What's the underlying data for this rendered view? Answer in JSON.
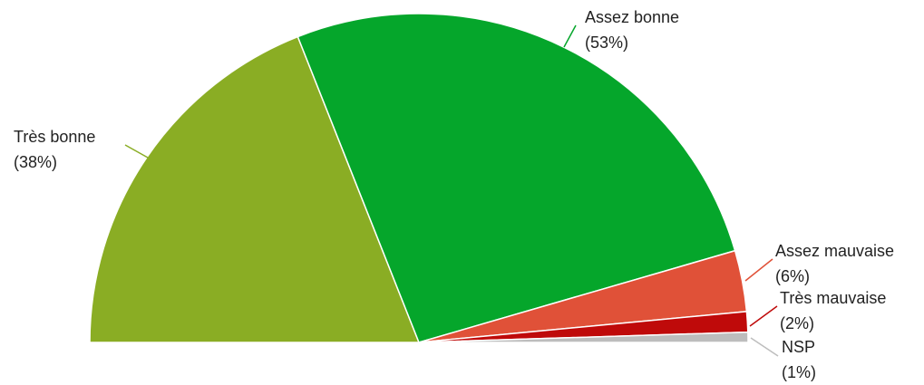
{
  "chart_data": {
    "type": "pie",
    "categories": [
      "Très bonne",
      "Assez bonne",
      "Assez mauvaise",
      "Très mauvaise",
      "NSP"
    ],
    "values": [
      38,
      53,
      6,
      2,
      1
    ],
    "value_labels": [
      "(38%)",
      "(53%)",
      "(6%)",
      "(2%)",
      "(1%)"
    ],
    "colors": [
      "#8aad24",
      "#05a62b",
      "#e05138",
      "#bf0a0a",
      "#bdbdbd"
    ]
  }
}
